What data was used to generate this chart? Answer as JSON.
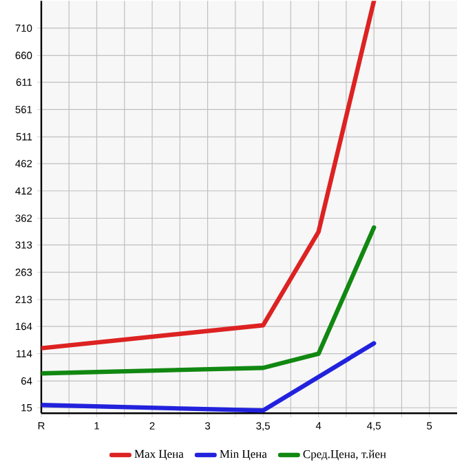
{
  "chart_data": {
    "type": "line",
    "categories": [
      "R",
      "1",
      "2",
      "3",
      "3,5",
      "4",
      "4,5",
      "5"
    ],
    "series": [
      {
        "name": "Max Цена",
        "color": "#dd2222",
        "values": [
          124,
          null,
          null,
          null,
          166,
          337,
          760,
          null
        ]
      },
      {
        "name": "Min Цена",
        "color": "#2222dd",
        "values": [
          20,
          null,
          null,
          null,
          10,
          null,
          133,
          null
        ]
      },
      {
        "name": "Сред.Цена, т.йен",
        "color": "#118811",
        "values": [
          78,
          null,
          null,
          null,
          88,
          114,
          345,
          null
        ]
      }
    ],
    "ylim": [
      5,
      760
    ],
    "yticks": [
      15,
      64,
      114,
      164,
      213,
      263,
      313,
      362,
      412,
      462,
      511,
      561,
      611,
      660,
      710
    ],
    "grid": true,
    "legend": "bottom",
    "marker": "none",
    "line_style": "solid"
  }
}
